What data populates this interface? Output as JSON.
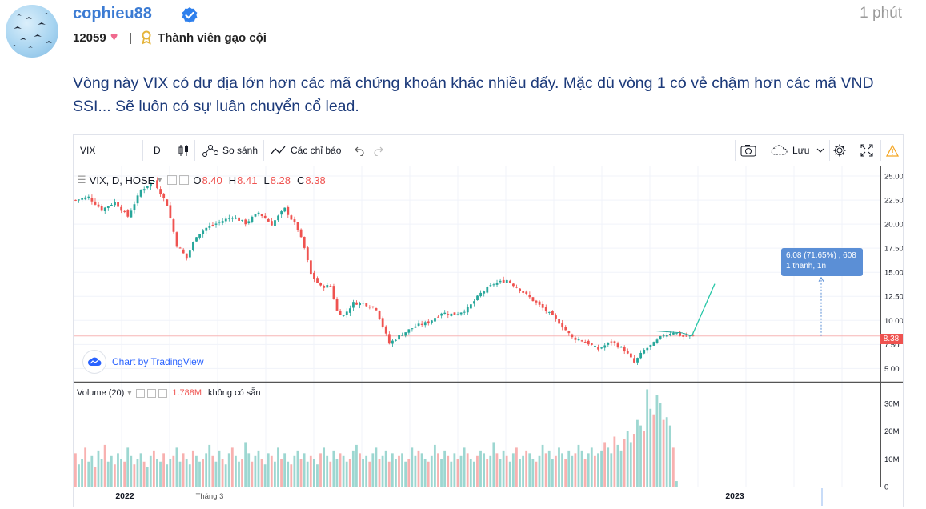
{
  "post": {
    "username": "cophieu88",
    "time": "1 phút",
    "points": "12059",
    "rank": "Thành viên gạo cội",
    "text": "Vòng này VIX có dư địa lớn hơn các mã chứng khoán khác nhiều đấy. Mặc dù vòng 1 có vẻ chậm hơn các mã VND SSI... Sẽ luôn có sự luân chuyển cổ lead."
  },
  "toolbar": {
    "symbol": "VIX",
    "interval": "D",
    "compare": "So sánh",
    "indicators": "Các chỉ báo",
    "save": "Lưu",
    "icons": [
      "candles-icon",
      "compare-icon",
      "indicators-icon",
      "undo-icon",
      "redo-icon",
      "camera-icon",
      "cloud-icon",
      "gear-icon",
      "fullscreen-icon",
      "warning-icon"
    ]
  },
  "legend": {
    "title": "VIX, D, HOSE",
    "o_label": "O",
    "o": "8.40",
    "h_label": "H",
    "h": "8.41",
    "l_label": "L",
    "l": "8.28",
    "c_label": "C",
    "c": "8.38"
  },
  "volume_legend": {
    "title": "Volume (20)",
    "value": "1.788M",
    "note": "không có sẵn"
  },
  "branding": "Chart by TradingView",
  "measure": {
    "line1": "6.08 (71.65%) , 608",
    "line2": "1 thanh, 1n"
  },
  "last_price": "8.38",
  "colors": {
    "up": "#26a69a",
    "down": "#ef5350",
    "accent": "#2962ff",
    "username": "#3b7bd3",
    "post_text": "#1c3a7a"
  },
  "chart_data": {
    "type": "candlestick",
    "price_axis_ticks": [
      "25.00",
      "22.50",
      "20.00",
      "17.50",
      "15.00",
      "12.50",
      "10.00",
      "7.50",
      "5.00"
    ],
    "volume_axis_ticks": [
      "30M",
      "20M",
      "10M",
      "0"
    ],
    "time_axis_labels": [
      "2022",
      "Tháng 3",
      "2023"
    ],
    "price_range": [
      3.7,
      26.0
    ],
    "volume_range": [
      0,
      36
    ],
    "price_path": [
      [
        0,
        22.5
      ],
      [
        4,
        22.8
      ],
      [
        8,
        21.5
      ],
      [
        12,
        22.3
      ],
      [
        16,
        20.8
      ],
      [
        20,
        23.5
      ],
      [
        24,
        24.5
      ],
      [
        28,
        22.0
      ],
      [
        31,
        17.8
      ],
      [
        34,
        16.5
      ],
      [
        37,
        18.8
      ],
      [
        40,
        19.6
      ],
      [
        44,
        20.2
      ],
      [
        48,
        20.8
      ],
      [
        52,
        20.1
      ],
      [
        56,
        21.2
      ],
      [
        60,
        20.0
      ],
      [
        64,
        21.6
      ],
      [
        68,
        19.5
      ],
      [
        70,
        17.5
      ],
      [
        72,
        14.8
      ],
      [
        75,
        13.5
      ],
      [
        78,
        13.6
      ],
      [
        80,
        11.0
      ],
      [
        82,
        10.5
      ],
      [
        85,
        11.8
      ],
      [
        88,
        11.8
      ],
      [
        92,
        11.2
      ],
      [
        96,
        7.6
      ],
      [
        100,
        8.6
      ],
      [
        104,
        9.4
      ],
      [
        108,
        9.8
      ],
      [
        112,
        10.8
      ],
      [
        116,
        10.6
      ],
      [
        120,
        11.2
      ],
      [
        124,
        12.8
      ],
      [
        128,
        13.8
      ],
      [
        132,
        14.2
      ],
      [
        136,
        13.2
      ],
      [
        140,
        12.1
      ],
      [
        144,
        11.0
      ],
      [
        148,
        9.8
      ],
      [
        152,
        8.2
      ],
      [
        156,
        7.8
      ],
      [
        160,
        7.0
      ],
      [
        164,
        7.8
      ],
      [
        168,
        6.9
      ],
      [
        171,
        5.6
      ],
      [
        174,
        6.9
      ],
      [
        177,
        7.6
      ],
      [
        180,
        8.5
      ],
      [
        183,
        8.8
      ],
      [
        186,
        8.3
      ],
      [
        189,
        8.38
      ]
    ],
    "projection": [
      [
        189,
        8.38
      ],
      [
        196,
        13.8
      ]
    ],
    "measure_from": 8.38,
    "measure_to": 14.46,
    "volume_millions": [
      12,
      8,
      10,
      14,
      9,
      11,
      7,
      13,
      10,
      15,
      9,
      11,
      8,
      12,
      10,
      9,
      14,
      11,
      8,
      10,
      12,
      9,
      7,
      11,
      13,
      10,
      9,
      12,
      8,
      10,
      11,
      14,
      9,
      12,
      10,
      8,
      13,
      11,
      9,
      10,
      12,
      15,
      11,
      9,
      13,
      10,
      8,
      12,
      14,
      11,
      9,
      10,
      16,
      12,
      9,
      11,
      13,
      10,
      8,
      12,
      11,
      9,
      14,
      10,
      12,
      9,
      8,
      11,
      13,
      10,
      12,
      9,
      11,
      10,
      8,
      12,
      14,
      11,
      9,
      13,
      10,
      12,
      11,
      9,
      10,
      13,
      15,
      12,
      10,
      11,
      9,
      12,
      14,
      10,
      11,
      13,
      9,
      12,
      10,
      11,
      12,
      9,
      10,
      14,
      11,
      13,
      12,
      10,
      9,
      11,
      15,
      12,
      10,
      13,
      11,
      9,
      12,
      10,
      11,
      14,
      12,
      10,
      9,
      11,
      13,
      12,
      10,
      11,
      16,
      12,
      10,
      13,
      11,
      9,
      12,
      14,
      10,
      11,
      13,
      12,
      10,
      9,
      11,
      15,
      12,
      13,
      10,
      11,
      14,
      12,
      10,
      13,
      11,
      12,
      15,
      13,
      10,
      12,
      14,
      11,
      12,
      13,
      16,
      14,
      12,
      18,
      15,
      13,
      17,
      20,
      16,
      19,
      24,
      22,
      20,
      35,
      28,
      26,
      33,
      30,
      24,
      25,
      22,
      14,
      2
    ]
  }
}
